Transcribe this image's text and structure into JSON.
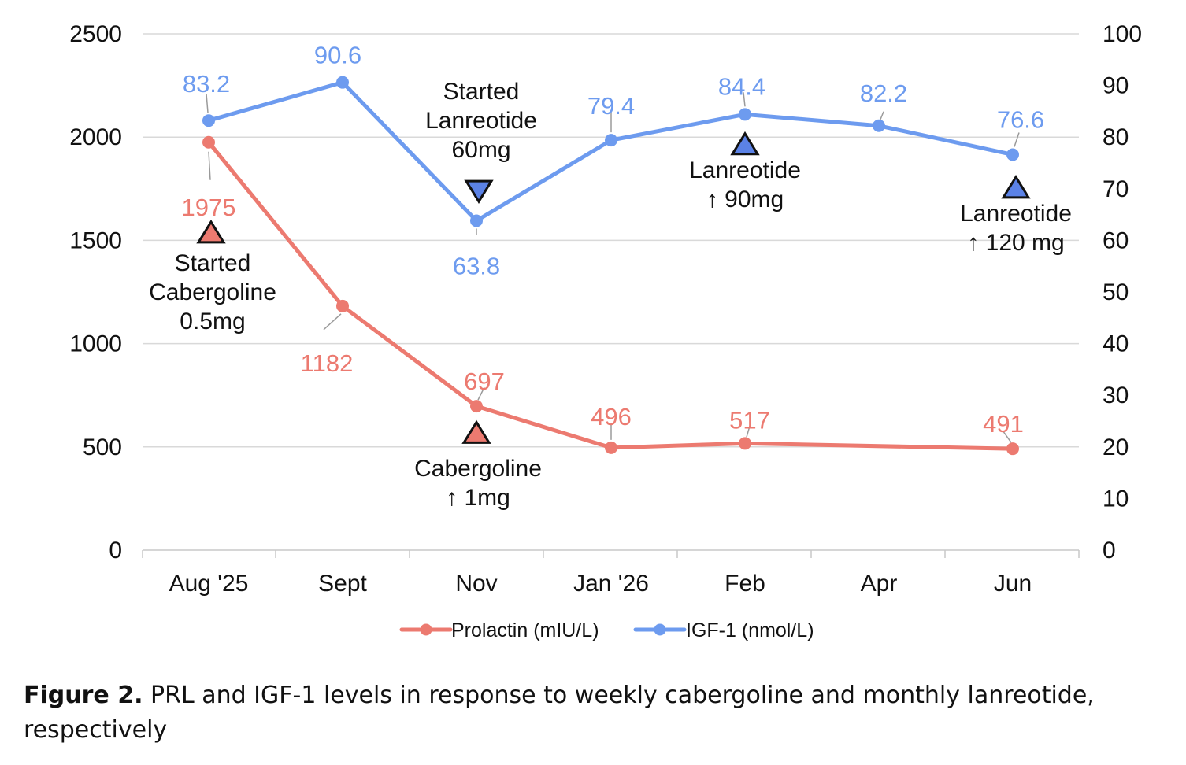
{
  "chart_data": {
    "type": "line",
    "categories": [
      "Aug '25",
      "Sept",
      "Nov",
      "Jan '26",
      "Feb",
      "Apr",
      "Jun"
    ],
    "y_left": {
      "range": [
        0,
        2500
      ],
      "ticks": [
        "0",
        "500",
        "1000",
        "1500",
        "2000",
        "2500"
      ]
    },
    "y_right": {
      "range": [
        0,
        100
      ],
      "ticks": [
        "0",
        "10",
        "20",
        "30",
        "40",
        "50",
        "60",
        "70",
        "80",
        "90",
        "100"
      ]
    },
    "grid": true,
    "legend_placement": "bottom",
    "series": [
      {
        "name": "Prolactin (mIU/L)",
        "axis": "left",
        "color": "#ec7a70",
        "values": [
          1975,
          1182,
          697,
          496,
          517,
          null,
          491
        ],
        "labels": [
          "1975",
          "1182",
          "697",
          "496",
          "517",
          "",
          "491"
        ]
      },
      {
        "name": "IGF-1 (nmol/L)",
        "axis": "right",
        "color": "#6d9bef",
        "values": [
          83.2,
          90.6,
          63.8,
          79.4,
          84.4,
          82.2,
          76.6
        ],
        "labels": [
          "83.2",
          "90.6",
          "63.8",
          "79.4",
          "84.4",
          "82.2",
          "76.6"
        ]
      }
    ],
    "annotations": [
      {
        "id": "started-cabergoline",
        "category": "Aug '25",
        "axis": "left",
        "value": 1540,
        "marker": "up",
        "color": "#ec7a70",
        "lines": [
          "Started",
          "Cabergoline",
          "0.5mg"
        ]
      },
      {
        "id": "cabergoline-increase",
        "category": "Nov",
        "axis": "left",
        "value": 570,
        "marker": "up",
        "color": "#ec7a70",
        "lines": [
          "Cabergoline",
          "↑ 1mg"
        ]
      },
      {
        "id": "started-lanreotide",
        "category": "Nov",
        "axis": "right",
        "value": 69.5,
        "marker": "down",
        "color": "#5b82e6",
        "lines": [
          "Started",
          "Lanreotide",
          "60mg"
        ]
      },
      {
        "id": "lanreotide-90",
        "category": "Feb",
        "axis": "right",
        "value": 78.7,
        "marker": "up",
        "color": "#5b82e6",
        "lines": [
          "Lanreotide",
          "↑ 90mg"
        ]
      },
      {
        "id": "lanreotide-120",
        "category": "Jun",
        "axis": "right",
        "value": 70.3,
        "marker": "up",
        "color": "#5b82e6",
        "lines": [
          "Lanreotide",
          "↑ 120 mg"
        ]
      }
    ]
  },
  "caption": {
    "label": "Figure 2.",
    "text": " PRL and IGF-1 levels in response to weekly cabergoline and monthly lanreotide, respectively"
  }
}
